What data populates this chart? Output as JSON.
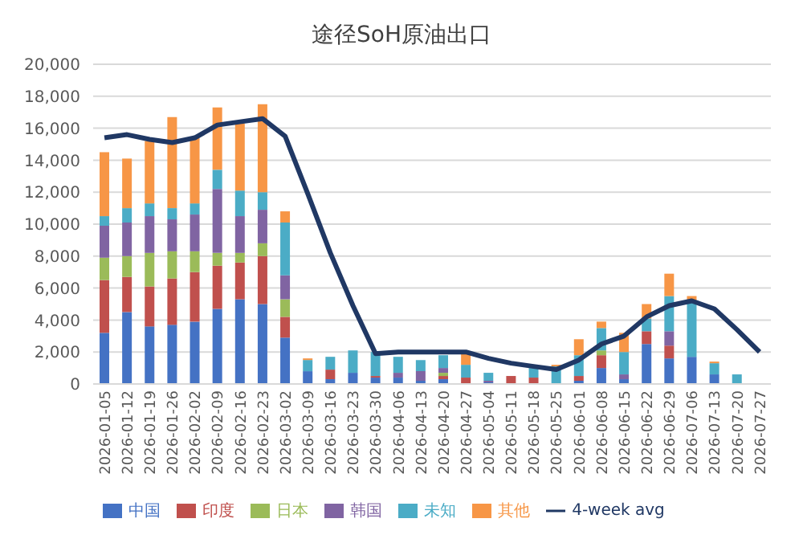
{
  "chart_data": {
    "type": "bar",
    "title": "途径SoH原油出口",
    "stacked": true,
    "grid": "y",
    "legend": "bottom",
    "categories": [
      "2026-01-05",
      "2026-01-12",
      "2026-01-19",
      "2026-01-26",
      "2026-02-02",
      "2026-02-09",
      "2026-02-16",
      "2026-02-23",
      "2026-03-02",
      "2026-03-09",
      "2026-03-16",
      "2026-03-23",
      "2026-03-30",
      "2026-04-06",
      "2026-04-13",
      "2026-04-20",
      "2026-04-27",
      "2026-05-04",
      "2026-05-11",
      "2026-05-18",
      "2026-05-25",
      "2026-06-01",
      "2026-06-08",
      "2026-06-15",
      "2026-06-22",
      "2026-06-29",
      "2026-07-06",
      "2026-07-13",
      "2026-07-20",
      "2026-07-27"
    ],
    "ylim": [
      0,
      20000
    ],
    "yticks": [
      {
        "value": 0,
        "label": "0"
      },
      {
        "value": 2000,
        "label": "2,000"
      },
      {
        "value": 4000,
        "label": "4,000"
      },
      {
        "value": 6000,
        "label": "6,000"
      },
      {
        "value": 8000,
        "label": "8,000"
      },
      {
        "value": 10000,
        "label": "10,000"
      },
      {
        "value": 12000,
        "label": "12,000"
      },
      {
        "value": 14000,
        "label": "14,000"
      },
      {
        "value": 16000,
        "label": "16,000"
      },
      {
        "value": 18000,
        "label": "18,000"
      },
      {
        "value": 20000,
        "label": "20,000"
      }
    ],
    "series": [
      {
        "name": "中国",
        "color": "#4472c4",
        "values": [
          3200,
          4500,
          3600,
          3700,
          3900,
          4700,
          5300,
          5000,
          2900,
          800,
          300,
          700,
          400,
          400,
          200,
          300,
          null,
          100,
          0,
          0,
          0,
          200,
          1000,
          300,
          2500,
          1600,
          1700,
          600,
          0,
          0
        ]
      },
      {
        "name": "印度",
        "color": "#c0504d",
        "values": [
          3300,
          2200,
          2500,
          2900,
          3100,
          2700,
          2300,
          3000,
          1300,
          0,
          600,
          0,
          100,
          0,
          0,
          200,
          400,
          0,
          500,
          400,
          0,
          300,
          800,
          0,
          800,
          800,
          0,
          0,
          0,
          0
        ]
      },
      {
        "name": "日本",
        "color": "#9bbb59",
        "values": [
          1400,
          1300,
          2100,
          1700,
          1300,
          800,
          600,
          800,
          1100,
          0,
          0,
          0,
          0,
          0,
          0,
          200,
          0,
          0,
          0,
          0,
          0,
          0,
          300,
          0,
          0,
          0,
          0,
          0,
          0,
          0
        ]
      },
      {
        "name": "韩国",
        "color": "#8064a2",
        "values": [
          2000,
          2100,
          2300,
          2000,
          2300,
          4000,
          2300,
          2100,
          1500,
          0,
          0,
          0,
          0,
          300,
          600,
          300,
          0,
          100,
          0,
          0,
          0,
          0,
          0,
          300,
          0,
          900,
          0,
          0,
          0,
          0
        ]
      },
      {
        "name": "未知",
        "color": "#4bacc6",
        "values": [
          600,
          900,
          800,
          700,
          700,
          1200,
          1600,
          1100,
          3300,
          700,
          800,
          1400,
          1500,
          1000,
          700,
          800,
          800,
          500,
          0,
          600,
          1100,
          1300,
          1400,
          1400,
          800,
          2200,
          3500,
          700,
          600,
          0
        ]
      },
      {
        "name": "其他",
        "color": "#f79646",
        "values": [
          4000,
          3100,
          3900,
          5700,
          4100,
          3900,
          4200,
          5500,
          700,
          100,
          0,
          0,
          0,
          null,
          0,
          null,
          700,
          0,
          0,
          null,
          100,
          1000,
          400,
          1200,
          900,
          1400,
          300,
          100,
          0,
          0
        ]
      },
      {
        "name": "4-week avg",
        "type": "line",
        "color": "#203864",
        "marker": "none",
        "values": [
          15400,
          15600,
          15300,
          15100,
          15400,
          16200,
          16400,
          16600,
          15500,
          11900,
          8200,
          4900,
          1900,
          2000,
          2000,
          2000,
          2000,
          1600,
          1300,
          1100,
          900,
          1500,
          2500,
          3000,
          4200,
          4900,
          5200,
          4700,
          3400,
          2000
        ]
      }
    ]
  }
}
